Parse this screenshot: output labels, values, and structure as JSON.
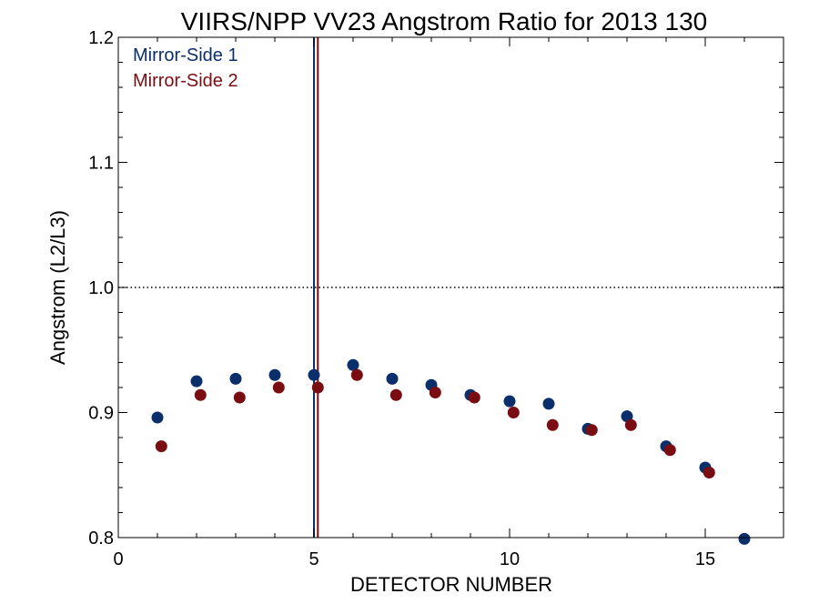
{
  "chart_data": {
    "type": "scatter",
    "title": "VIIRS/NPP VV23 Angstrom Ratio for 2013 130",
    "xlabel": "DETECTOR NUMBER",
    "ylabel": "Angstrom (L2/L3)",
    "xlim": [
      0,
      17
    ],
    "ylim": [
      0.8,
      1.2
    ],
    "xticks": [
      0,
      5,
      10,
      15
    ],
    "xtick_labels": [
      "0",
      "5",
      "10",
      "15"
    ],
    "yticks": [
      0.8,
      0.9,
      1.0,
      1.1,
      1.2
    ],
    "ytick_labels": [
      "0.8",
      "0.9",
      "1.0",
      "1.1",
      "1.2"
    ],
    "reference_line": {
      "y": 1.0,
      "style": "dotted"
    },
    "vertical_lines": [
      {
        "x": 5.0,
        "color": "#0b2f6b"
      },
      {
        "x": 5.1,
        "color": "#7a0d12"
      }
    ],
    "legend_position": "top-left",
    "series": [
      {
        "name": "Mirror-Side 1",
        "color": "#0b2f6b",
        "x": [
          1,
          2,
          3,
          4,
          5,
          6,
          7,
          8,
          9,
          10,
          11,
          12,
          13,
          14,
          15,
          16
        ],
        "y": [
          0.896,
          0.925,
          0.927,
          0.93,
          0.93,
          0.938,
          0.927,
          0.922,
          0.914,
          0.909,
          0.907,
          0.887,
          0.897,
          0.873,
          0.856,
          0.799
        ]
      },
      {
        "name": "Mirror-Side 2",
        "color": "#7a0d12",
        "x": [
          1.1,
          2.1,
          3.1,
          4.1,
          5.1,
          6.1,
          7.1,
          8.1,
          9.1,
          10.1,
          11.1,
          12.1,
          13.1,
          14.1,
          15.1
        ],
        "y": [
          0.873,
          0.914,
          0.912,
          0.92,
          0.92,
          0.93,
          0.914,
          0.916,
          0.912,
          0.9,
          0.89,
          0.886,
          0.89,
          0.87,
          0.852
        ]
      }
    ]
  }
}
